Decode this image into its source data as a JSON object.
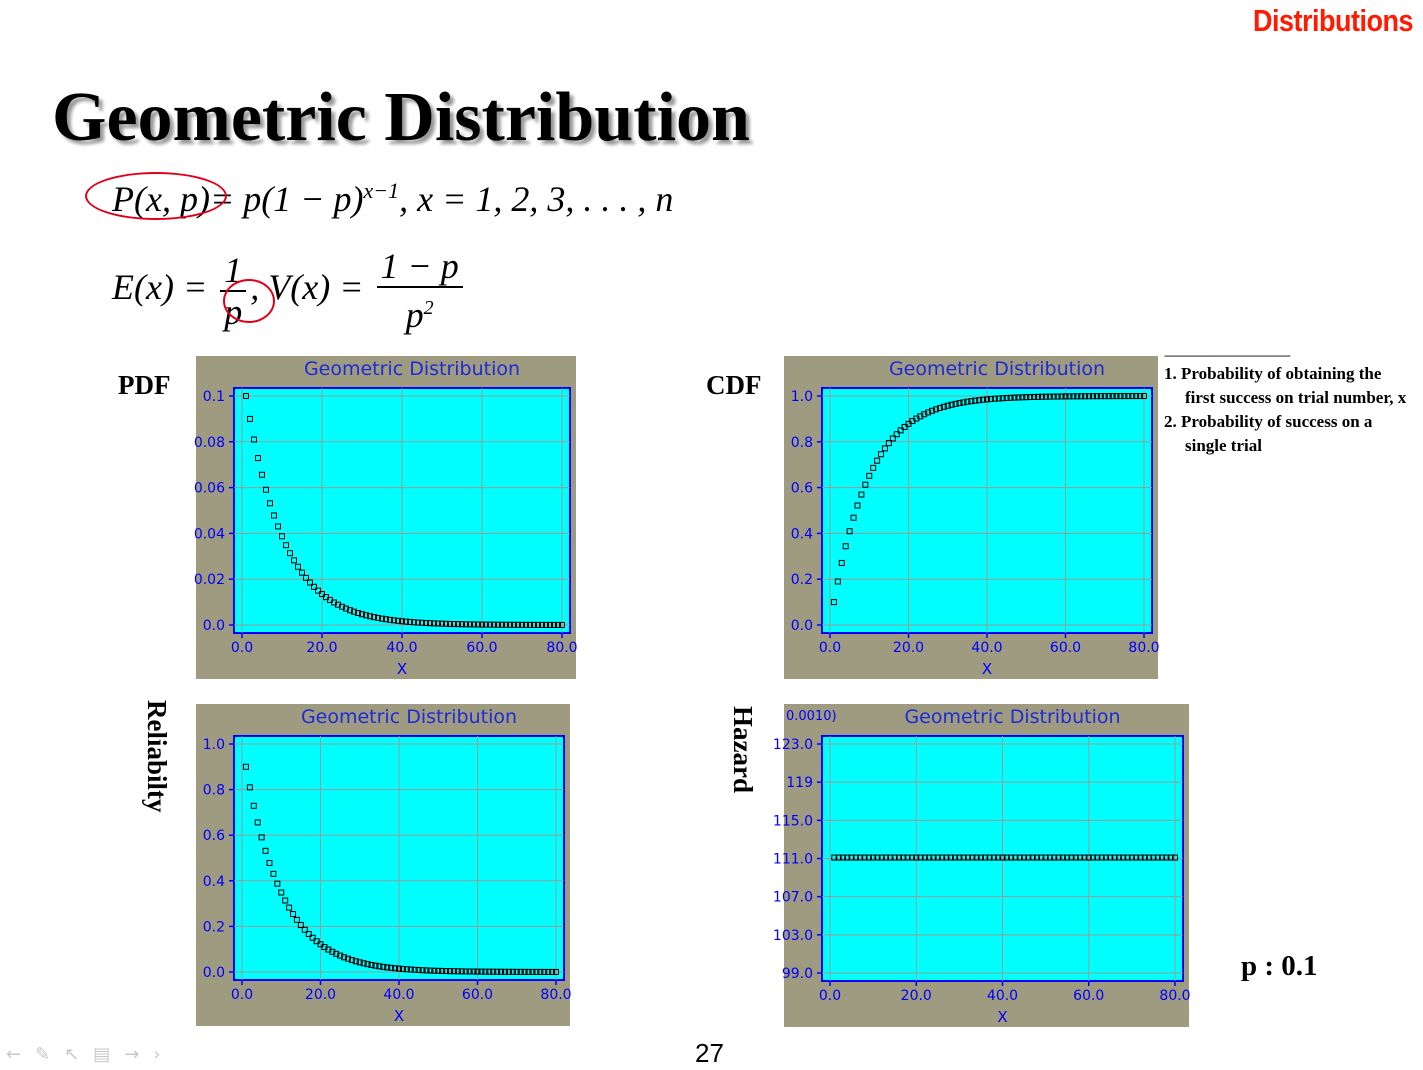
{
  "section_tag": "Distributions",
  "title": "Geometric Distribution",
  "formulas": {
    "pmf_lhs": "P(x, p)",
    "pmf_rhs": "= p(1 − p)",
    "pmf_exp": "x−1",
    "pmf_domain": ",    x = 1, 2, 3, . . . , n",
    "mean_lhs": "E(x) =",
    "mean_num": "1",
    "mean_den": "p",
    "var_lhs": ",    V(x) =",
    "var_num": "1 − p",
    "var_den": "p",
    "var_den_exp": "2"
  },
  "plot_labels": {
    "pdf": "PDF",
    "cdf": "CDF",
    "reliability": "Reliabilty",
    "hazard": "Hazard"
  },
  "note": {
    "rule": "------------------------------------------",
    "item1": "1. Probability of obtaining the first success on trial number, x",
    "item2": "2. Probability of success on a single trial"
  },
  "param_label": "p : 0.1",
  "page_number": "27",
  "nav_icons": [
    "arrow-left-icon",
    "pen-icon",
    "pointer-icon",
    "slide-icon",
    "arrow-right-icon",
    "chevron-right-icon"
  ],
  "colors": {
    "plot_bg": "#00ffff",
    "panel_bg": "#9e9b80",
    "axis": "#0000ff",
    "title_text": "#1e2bd6",
    "circle": "#e0001a",
    "tag": "#ff1a00"
  },
  "chart_data": [
    {
      "id": "pdf",
      "type": "scatter",
      "title": "Geometric Distribution",
      "xlabel": "X",
      "ylabel": "",
      "xlim": [
        0,
        80
      ],
      "ylim": [
        0,
        0.1
      ],
      "xticks": [
        "0.0",
        "20.0",
        "40.0",
        "60.0",
        "80.0"
      ],
      "yticks": [
        "0.0",
        "0.02",
        "0.04",
        "0.06",
        "0.08",
        "0.1"
      ],
      "grid": true,
      "p": 0.1,
      "x_range": [
        1,
        80
      ],
      "curve": "pdf",
      "annotation": ""
    },
    {
      "id": "cdf",
      "type": "scatter",
      "title": "Geometric Distribution",
      "xlabel": "X",
      "ylabel": "",
      "xlim": [
        0,
        80
      ],
      "ylim": [
        0,
        1.0
      ],
      "xticks": [
        "0.0",
        "20.0",
        "40.0",
        "60.0",
        "80.0"
      ],
      "yticks": [
        "0.0",
        "0.2",
        "0.4",
        "0.6",
        "0.8",
        "1.0"
      ],
      "grid": true,
      "p": 0.1,
      "x_range": [
        1,
        80
      ],
      "curve": "cdf",
      "annotation": ""
    },
    {
      "id": "reliability",
      "type": "scatter",
      "title": "Geometric Distribution",
      "xlabel": "X",
      "ylabel": "",
      "xlim": [
        0,
        80
      ],
      "ylim": [
        0,
        1.0
      ],
      "xticks": [
        "0.0",
        "20.0",
        "40.0",
        "60.0",
        "80.0"
      ],
      "yticks": [
        "0.0",
        "0.2",
        "0.4",
        "0.6",
        "0.8",
        "1.0"
      ],
      "grid": true,
      "p": 0.1,
      "x_range": [
        1,
        80
      ],
      "curve": "reliability",
      "annotation": ""
    },
    {
      "id": "hazard",
      "type": "scatter",
      "title": "Geometric Distribution",
      "xlabel": "X",
      "ylabel": "",
      "xlim": [
        0,
        80
      ],
      "ylim": [
        99.0,
        123.0
      ],
      "xticks": [
        "0.0",
        "20.0",
        "40.0",
        "60.0",
        "80.0"
      ],
      "yticks": [
        "99.0",
        "103.0",
        "107.0",
        "111.0",
        "115.0",
        "119",
        "123.0"
      ],
      "grid": true,
      "p": 0.1,
      "x_range": [
        1,
        80
      ],
      "curve": "hazard",
      "constant_value": 111.1,
      "annotation": "0.0010)"
    }
  ]
}
